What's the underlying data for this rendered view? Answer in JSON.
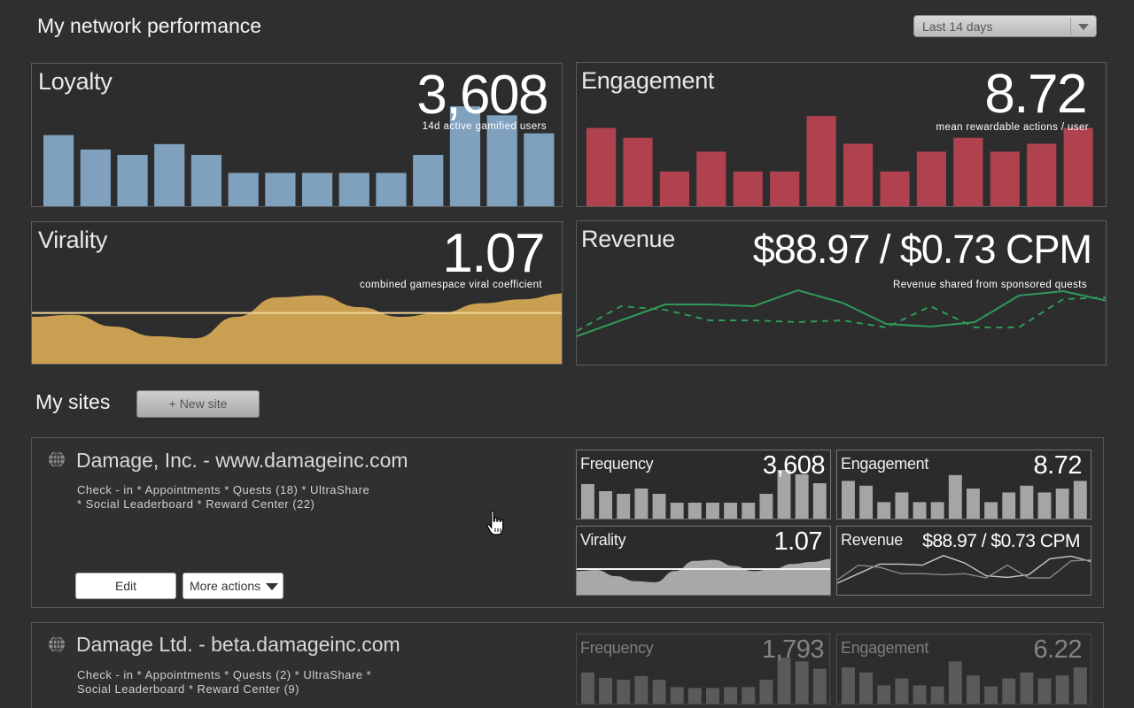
{
  "header": {
    "title": "My network performance",
    "date_range": "Last 14 days"
  },
  "network": {
    "loyalty": {
      "title": "Loyalty",
      "value": "3,608",
      "caption": "14d active gamified users",
      "color": "#7fa1bd",
      "chart_data": {
        "type": "bar",
        "values": [
          40,
          32,
          29,
          35,
          29,
          19,
          19,
          19,
          19,
          19,
          29,
          56,
          51,
          41
        ],
        "ylim": [
          0,
          60
        ]
      }
    },
    "engagement": {
      "title": "Engagement",
      "value": "8.72",
      "caption": "mean rewardable actions / user",
      "color": "#b04250",
      "chart_data": {
        "type": "bar",
        "values": [
          40,
          35,
          18,
          28,
          18,
          18,
          46,
          32,
          18,
          28,
          35,
          28,
          32,
          40
        ],
        "ylim": [
          0,
          55
        ]
      }
    },
    "virality": {
      "title": "Virality",
      "value": "1.07",
      "caption": "combined gamespace viral coefficient",
      "color": "#c9a052",
      "chart_data": {
        "type": "area",
        "values": [
          1.05,
          1.06,
          1.0,
          0.95,
          0.94,
          1.05,
          1.15,
          1.16,
          1.1,
          1.05,
          1.07,
          1.12,
          1.14,
          1.17
        ],
        "baseline": 1.07,
        "ylim": [
          0.8,
          1.4
        ]
      }
    },
    "revenue": {
      "title": "Revenue",
      "value": "$88.97 / $0.73 CPM",
      "caption": "Revenue shared from sponsored quests",
      "color": "#2f9a58",
      "chart_data": {
        "type": "line",
        "series": [
          {
            "style": "solid",
            "values": [
              30,
              48,
              66,
              66,
              64,
              82,
              68,
              44,
              41,
              46,
              76,
              81,
              70
            ]
          },
          {
            "style": "dashed",
            "values": [
              36,
              64,
              60,
              48,
              48,
              46,
              48,
              40,
              64,
              40,
              40,
              72,
              74
            ]
          }
        ],
        "ylim": [
          0,
          100
        ]
      }
    }
  },
  "sites_section": {
    "title": "My sites",
    "new_site_label": "+ New site"
  },
  "sites": [
    {
      "name": "Damage, Inc. - www.damageinc.com",
      "features_line1": "Check - in * Appointments * Quests (18) * UltraShare",
      "features_line2": "* Social Leaderboard * Reward Center (22)",
      "edit_label": "Edit",
      "more_label": "More actions",
      "frequency": {
        "title": "Frequency",
        "value": "3,608",
        "chart_data": {
          "type": "bar",
          "values": [
            40,
            32,
            29,
            35,
            29,
            19,
            19,
            19,
            19,
            19,
            29,
            56,
            51,
            41
          ],
          "ylim": [
            0,
            60
          ]
        }
      },
      "engagement": {
        "title": "Engagement",
        "value": "8.72",
        "chart_data": {
          "type": "bar",
          "values": [
            40,
            35,
            18,
            28,
            18,
            18,
            46,
            32,
            18,
            28,
            35,
            28,
            32,
            40
          ],
          "ylim": [
            0,
            55
          ]
        }
      },
      "virality": {
        "title": "Virality",
        "value": "1.07",
        "chart_data": {
          "type": "area",
          "values": [
            1.05,
            1.06,
            1.0,
            0.95,
            0.94,
            1.05,
            1.15,
            1.16,
            1.1,
            1.05,
            1.07,
            1.12,
            1.14,
            1.17
          ],
          "baseline": 1.07,
          "ylim": [
            0.8,
            1.4
          ]
        }
      },
      "revenue": {
        "title": "Revenue",
        "value": "$88.97 / $0.73 CPM",
        "chart_data": {
          "type": "line",
          "series": [
            {
              "values": [
                30,
                48,
                66,
                66,
                64,
                82,
                68,
                44,
                41,
                46,
                76,
                81,
                70
              ]
            },
            {
              "values": [
                36,
                64,
                60,
                48,
                48,
                46,
                48,
                40,
                64,
                40,
                40,
                72,
                74
              ]
            }
          ],
          "ylim": [
            0,
            100
          ]
        }
      }
    },
    {
      "name": "Damage Ltd. - beta.damageinc.com",
      "features_line1": "Check - in * Appointments * Quests (2) * UltraShare *",
      "features_line2": "Social Leaderboard * Reward Center (9)",
      "frequency": {
        "title": "Frequency",
        "value": "1,793",
        "chart_data": {
          "type": "bar",
          "values": [
            36,
            30,
            28,
            32,
            28,
            20,
            19,
            19,
            20,
            20,
            28,
            52,
            48,
            40
          ],
          "ylim": [
            0,
            60
          ]
        }
      },
      "engagement": {
        "title": "Engagement",
        "value": "6.22",
        "chart_data": {
          "type": "bar",
          "values": [
            38,
            33,
            20,
            27,
            20,
            19,
            44,
            30,
            19,
            27,
            33,
            27,
            30,
            38
          ],
          "ylim": [
            0,
            55
          ]
        }
      }
    }
  ],
  "icons": {
    "globe": "globe-icon",
    "cursor": "hand-cursor-icon",
    "dropdown": "chevron-down-icon"
  }
}
